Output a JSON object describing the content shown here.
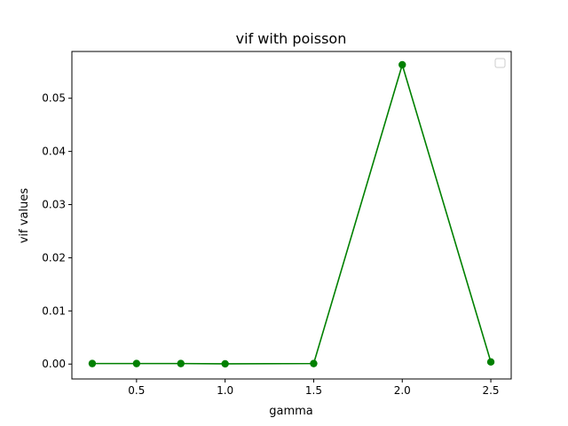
{
  "chart_data": {
    "type": "line",
    "title": "vif with poisson",
    "xlabel": "gamma",
    "ylabel": "vif values",
    "x": [
      0.25,
      0.5,
      0.75,
      1.0,
      1.5,
      2.0,
      2.5
    ],
    "series": [
      {
        "values": [
          0.0001,
          0.0001,
          0.0001,
          5e-05,
          0.0001,
          0.0563,
          0.0004
        ],
        "color": "#008000",
        "marker": "circle"
      }
    ],
    "xlim": [
      0.135,
      2.615
    ],
    "ylim": [
      -0.0028,
      0.0588
    ],
    "xticks": [
      0.5,
      1.0,
      1.5,
      2.0,
      2.5
    ],
    "xtick_labels": [
      "0.5",
      "1.0",
      "1.5",
      "2.0",
      "2.5"
    ],
    "yticks": [
      0.0,
      0.01,
      0.02,
      0.03,
      0.04,
      0.05
    ],
    "ytick_labels": [
      "0.00",
      "0.01",
      "0.02",
      "0.03",
      "0.04",
      "0.05"
    ],
    "grid": false,
    "legend": {
      "placement": "top-right",
      "entries": []
    }
  }
}
